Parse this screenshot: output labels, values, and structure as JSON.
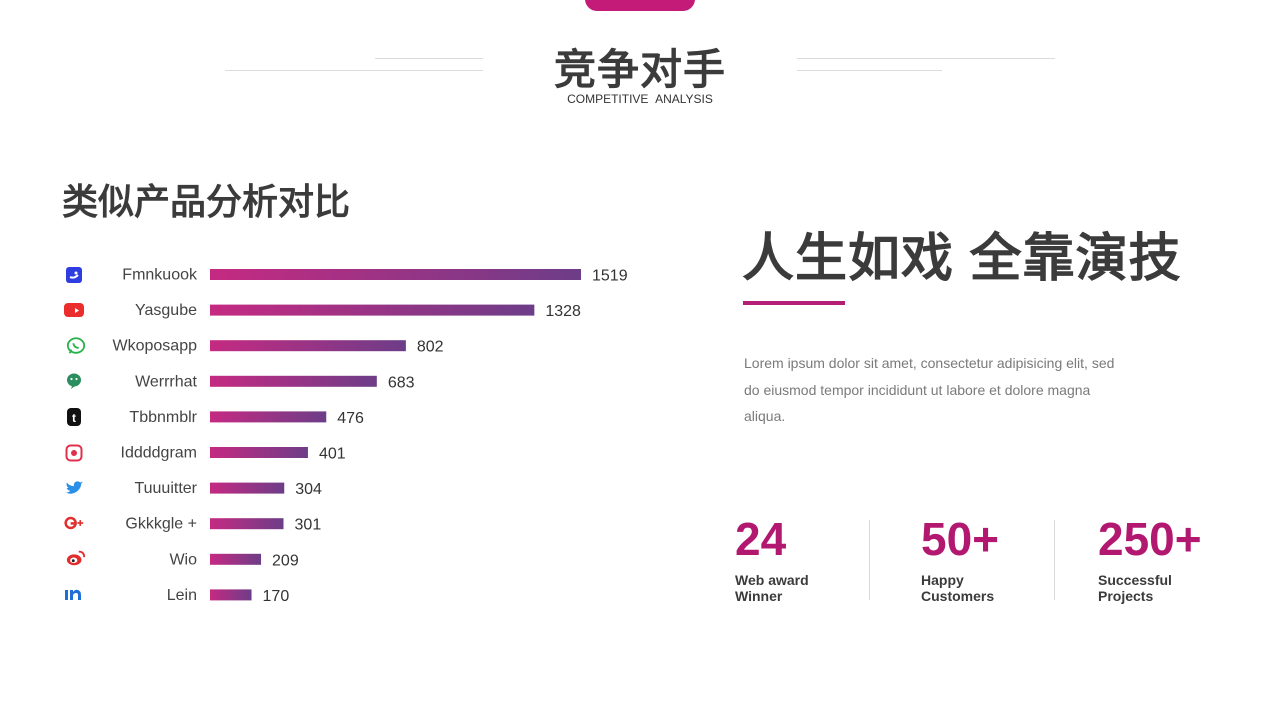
{
  "header": {
    "title": "竞争对手",
    "subtitle": "COMPETITIVE  ANALYSIS"
  },
  "section": {
    "title": "类似产品分析对比"
  },
  "chart_data": {
    "type": "bar",
    "orientation": "horizontal",
    "categories": [
      "Fmnkuook",
      "Yasgube",
      "Wkoposapp",
      "Werrrhat",
      "Tbbnmblr",
      "Iddddgram",
      "Tuuuitter",
      "Gkkkgle +",
      "Wio",
      "Lein"
    ],
    "values": [
      1519,
      1328,
      802,
      683,
      476,
      401,
      304,
      301,
      209,
      170
    ],
    "icons": [
      "facebook-icon",
      "youtube-icon",
      "whatsapp-icon",
      "wechat-icon",
      "tumblr-icon",
      "instagram-icon",
      "twitter-icon",
      "google-plus-icon",
      "weibo-icon",
      "linkedin-icon"
    ],
    "xlim": [
      0,
      1519
    ],
    "grid": false,
    "gradient": [
      "#c52a82",
      "#6d3d88"
    ]
  },
  "right": {
    "slogan": "人生如戏 全靠演技",
    "description": "Lorem ipsum dolor sit amet, consectetur adipisicing elit, sed do eiusmod tempor incididunt ut labore et dolore magna aliqua."
  },
  "stats": [
    {
      "value": "24",
      "label_line1": "Web award",
      "label_line2": "Winner"
    },
    {
      "value": "50+",
      "label_line1": "Happy",
      "label_line2": "Customers"
    },
    {
      "value": "250+",
      "label_line1": "Successful",
      "label_line2": "Projects"
    }
  ],
  "colors": {
    "accent": "#b31870",
    "text": "#3b3b3b",
    "muted": "#7a7a7a"
  }
}
